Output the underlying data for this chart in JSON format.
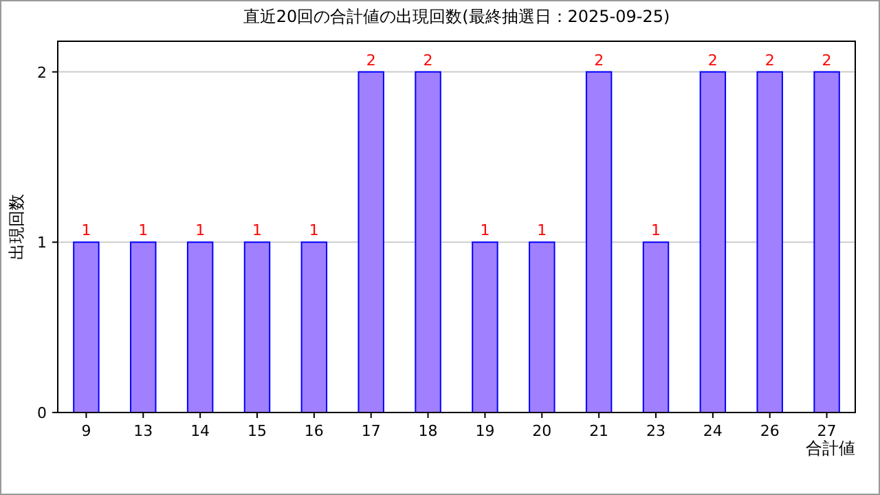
{
  "chart_data": {
    "type": "bar",
    "title": "直近20回の合計値の出現回数(最終抽選日：2025-09-25)",
    "xlabel": "合計値",
    "ylabel": "出現回数",
    "categories": [
      "9",
      "13",
      "14",
      "15",
      "16",
      "17",
      "18",
      "19",
      "20",
      "21",
      "23",
      "24",
      "26",
      "27"
    ],
    "values": [
      1,
      1,
      1,
      1,
      1,
      2,
      2,
      1,
      1,
      2,
      1,
      2,
      2,
      2
    ],
    "color": "#a080ff",
    "ylim": [
      0,
      2.18
    ],
    "yticks": [
      0,
      1,
      2
    ],
    "grid": "y",
    "data_labels": true
  }
}
